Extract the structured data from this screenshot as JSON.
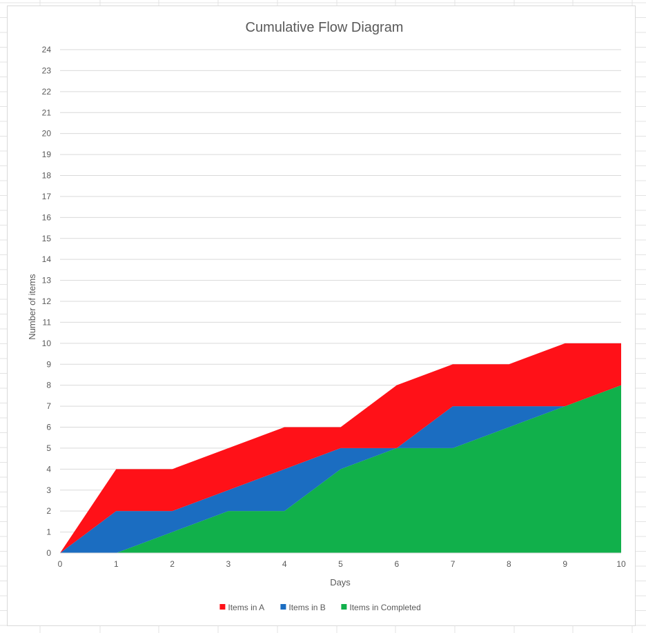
{
  "chart_data": {
    "type": "area",
    "stacked": true,
    "title": "Cumulative Flow Diagram",
    "xlabel": "Days",
    "ylabel": "Number of items",
    "x": [
      0,
      1,
      2,
      3,
      4,
      5,
      6,
      7,
      8,
      9,
      10
    ],
    "xlim": [
      0,
      10
    ],
    "ylim": [
      0,
      24
    ],
    "y_ticks": [
      0,
      1,
      2,
      3,
      4,
      5,
      6,
      7,
      8,
      9,
      10,
      11,
      12,
      13,
      14,
      15,
      16,
      17,
      18,
      19,
      20,
      21,
      22,
      23,
      24
    ],
    "grid": true,
    "legend_position": "bottom",
    "series": [
      {
        "name": "Items in Completed",
        "color": "#11b04b",
        "values": [
          0,
          0,
          1,
          2,
          2,
          4,
          5,
          5,
          6,
          7,
          8
        ]
      },
      {
        "name": "Items in B",
        "color": "#1b6dc1",
        "values": [
          0,
          2,
          1,
          1,
          2,
          1,
          0,
          2,
          1,
          0,
          0
        ]
      },
      {
        "name": "Items in A",
        "color": "#ff1118",
        "values": [
          0,
          2,
          2,
          2,
          2,
          1,
          3,
          2,
          2,
          3,
          2
        ]
      }
    ],
    "legend_order": [
      "Items in A",
      "Items in B",
      "Items in Completed"
    ]
  }
}
